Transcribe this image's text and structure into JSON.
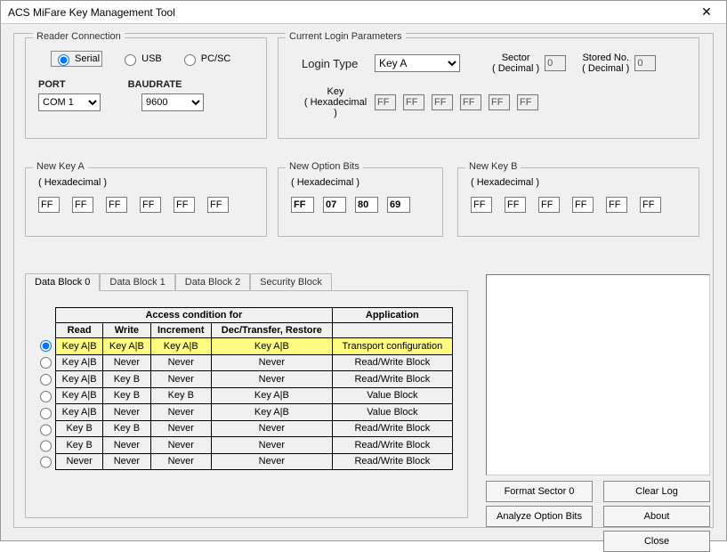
{
  "window": {
    "title": "ACS MiFare Key Management Tool"
  },
  "reader": {
    "legend": "Reader Connection",
    "opts": {
      "serial": "Serial",
      "usb": "USB",
      "pcsc": "PC/SC"
    },
    "port_label": "PORT",
    "baud_label": "BAUDRATE",
    "port_value": "COM 1",
    "baud_value": "9600"
  },
  "login": {
    "legend": "Current Login Parameters",
    "type_label": "Login Type",
    "type_value": "Key A",
    "sector_label1": "Sector",
    "sector_label2": "( Decimal )",
    "sector_value": "0",
    "stored_label1": "Stored No.",
    "stored_label2": "( Decimal )",
    "stored_value": "0",
    "key_label1": "Key",
    "key_label2": "( Hexadecimal )",
    "key": [
      "FF",
      "FF",
      "FF",
      "FF",
      "FF",
      "FF"
    ]
  },
  "newKeyA": {
    "legend": "New Key A",
    "sub": "( Hexadecimal )",
    "v": [
      "FF",
      "FF",
      "FF",
      "FF",
      "FF",
      "FF"
    ]
  },
  "optbits": {
    "legend": "New Option Bits",
    "sub": "( Hexadecimal )",
    "v": [
      "FF",
      "07",
      "80",
      "69"
    ]
  },
  "newKeyB": {
    "legend": "New Key B",
    "sub": "( Hexadecimal )",
    "v": [
      "FF",
      "FF",
      "FF",
      "FF",
      "FF",
      "FF"
    ]
  },
  "tabs": {
    "t0": "Data Block 0",
    "t1": "Data Block 1",
    "t2": "Data Block 2",
    "t3": "Security Block"
  },
  "table": {
    "h_access": "Access condition for",
    "h_app": "Application",
    "cols": {
      "read": "Read",
      "write": "Write",
      "inc": "Increment",
      "dec": "Dec/Transfer, Restore"
    },
    "rows": [
      {
        "read": "Key A|B",
        "write": "Key A|B",
        "inc": "Key A|B",
        "dec": "Key A|B",
        "app": "Transport configuration",
        "sel": true,
        "hl": true
      },
      {
        "read": "Key A|B",
        "write": "Never",
        "inc": "Never",
        "dec": "Never",
        "app": "Read/Write Block"
      },
      {
        "read": "Key A|B",
        "write": "Key B",
        "inc": "Never",
        "dec": "Never",
        "app": "Read/Write Block"
      },
      {
        "read": "Key A|B",
        "write": "Key B",
        "inc": "Key B",
        "dec": "Key A|B",
        "app": "Value Block"
      },
      {
        "read": "Key A|B",
        "write": "Never",
        "inc": "Never",
        "dec": "Key A|B",
        "app": "Value Block"
      },
      {
        "read": "Key B",
        "write": "Key B",
        "inc": "Never",
        "dec": "Never",
        "app": "Read/Write Block"
      },
      {
        "read": "Key B",
        "write": "Never",
        "inc": "Never",
        "dec": "Never",
        "app": "Read/Write Block"
      },
      {
        "read": "Never",
        "write": "Never",
        "inc": "Never",
        "dec": "Never",
        "app": "Read/Write Block"
      }
    ]
  },
  "buttons": {
    "format": "Format Sector 0",
    "clearlog": "Clear Log",
    "analyze": "Analyze Option Bits",
    "about": "About",
    "close": "Close"
  }
}
